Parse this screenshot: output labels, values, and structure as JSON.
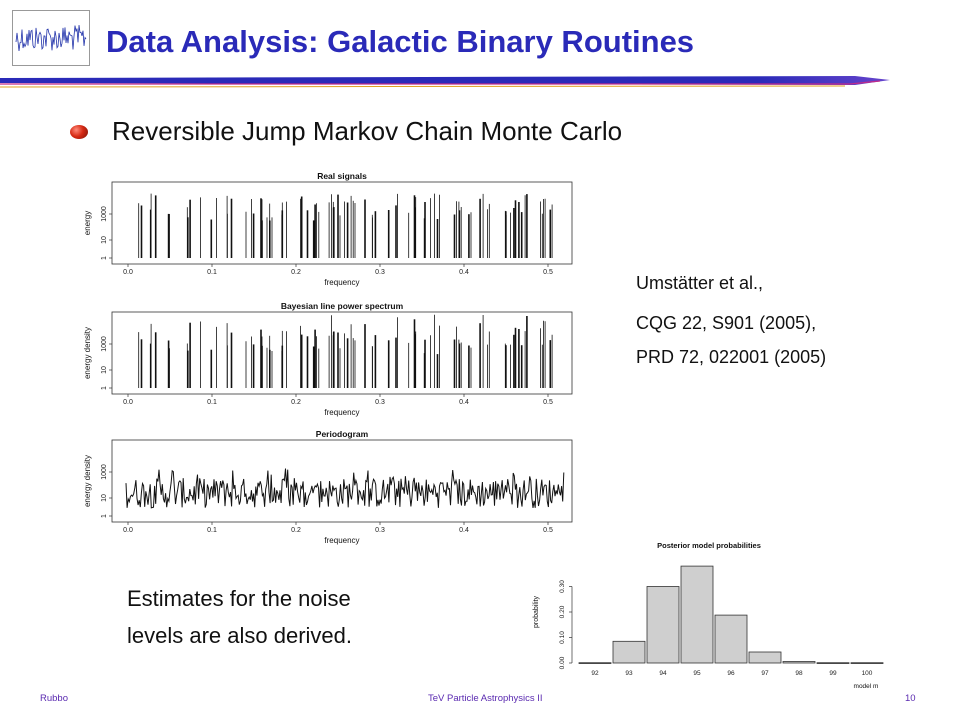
{
  "slide": {
    "title": "Data Analysis: Galactic Binary Routines",
    "bullet": "Reversible Jump Markov Chain Monte Carlo",
    "citation": {
      "line1": "Umstätter et al.,",
      "line2": "CQG 22, S901 (2005),",
      "line3": "PRD 72, 022001 (2005)"
    },
    "noise_text": {
      "line1": "Estimates for the noise",
      "line2": "levels are also derived."
    },
    "footer": {
      "left": "Rubbo",
      "center": "TeV Particle Astrophysics II",
      "page": "10"
    },
    "colors": {
      "title": "#2a2ab8",
      "footer": "#5a2ab0",
      "bullet": "#d62a14"
    },
    "logo_icon": "noise-trace-logo-icon",
    "bullet_icon": "red-sphere-bullet-icon"
  },
  "chart_data": [
    {
      "type": "bar",
      "title": "Real signals",
      "xlabel": "frequency",
      "ylabel": "energy",
      "xticks": [
        "0.0",
        "0.1",
        "0.2",
        "0.3",
        "0.4",
        "0.5"
      ],
      "yticks": [
        "1",
        "10",
        "1000"
      ],
      "xlim": [
        0,
        0.5
      ]
    },
    {
      "type": "bar",
      "title": "Bayesian line power spectrum",
      "xlabel": "frequency",
      "ylabel": "energy density",
      "xticks": [
        "0.0",
        "0.1",
        "0.2",
        "0.3",
        "0.4",
        "0.5"
      ],
      "yticks": [
        "1",
        "10",
        "1000"
      ],
      "xlim": [
        0,
        0.5
      ]
    },
    {
      "type": "line",
      "title": "Periodogram",
      "xlabel": "frequency",
      "ylabel": "energy density",
      "xticks": [
        "0.0",
        "0.1",
        "0.2",
        "0.3",
        "0.4",
        "0.5"
      ],
      "yticks": [
        "1",
        "10",
        "1000"
      ],
      "xlim": [
        0,
        0.5
      ]
    },
    {
      "type": "bar",
      "title": "Posterior model probabilities",
      "xlabel": "model m",
      "ylabel": "probability",
      "categories": [
        "92",
        "93",
        "94",
        "95",
        "96",
        "97",
        "98",
        "99",
        "100"
      ],
      "values": [
        0.001,
        0.085,
        0.3,
        0.38,
        0.188,
        0.043,
        0.006,
        0.001,
        0.001
      ],
      "yticks": [
        "0.00",
        "0.10",
        "0.20",
        "0.30"
      ],
      "ylim": [
        0,
        0.4
      ]
    }
  ]
}
